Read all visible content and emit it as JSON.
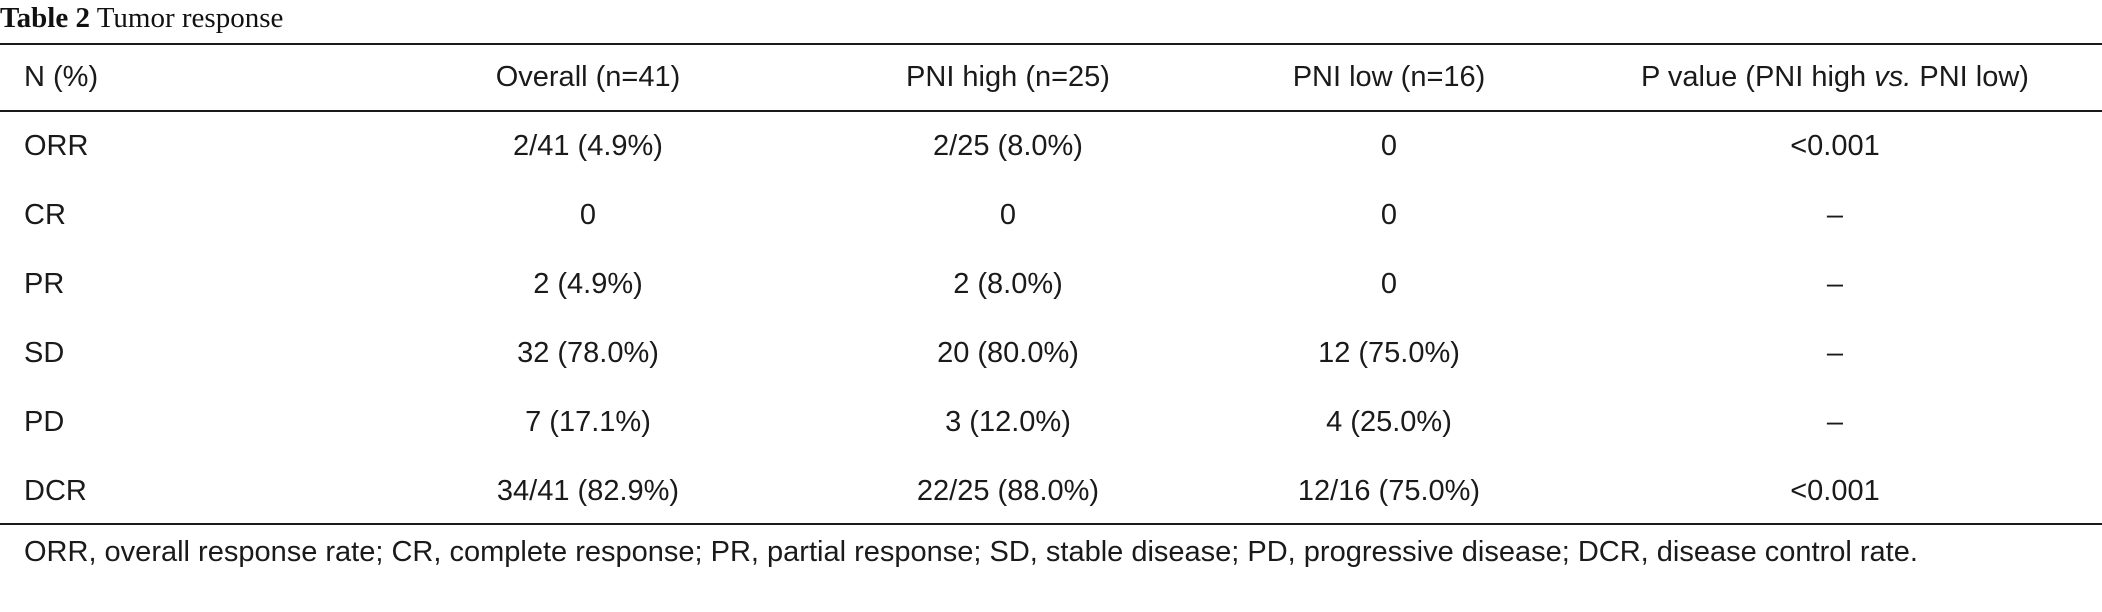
{
  "caption": {
    "label": "Table 2",
    "title": "Tumor response"
  },
  "table": {
    "headers": {
      "col0": "N (%)",
      "col1": "Overall (n=41)",
      "col2": "PNI high (n=25)",
      "col3": "PNI low (n=16)",
      "col4_prefix": "P value (PNI high ",
      "col4_italic": "vs.",
      "col4_suffix": " PNI low)"
    },
    "rows": [
      {
        "label": "ORR",
        "overall": "2/41 (4.9%)",
        "pni_high": "2/25 (8.0%)",
        "pni_low": "0",
        "p_value": "<0.001"
      },
      {
        "label": "CR",
        "overall": "0",
        "pni_high": "0",
        "pni_low": "0",
        "p_value": "–"
      },
      {
        "label": "PR",
        "overall": "2 (4.9%)",
        "pni_high": "2 (8.0%)",
        "pni_low": "0",
        "p_value": "–"
      },
      {
        "label": "SD",
        "overall": "32 (78.0%)",
        "pni_high": "20 (80.0%)",
        "pni_low": "12 (75.0%)",
        "p_value": "–"
      },
      {
        "label": "PD",
        "overall": "7 (17.1%)",
        "pni_high": "3 (12.0%)",
        "pni_low": "4 (25.0%)",
        "p_value": "–"
      },
      {
        "label": "DCR",
        "overall": "34/41 (82.9%)",
        "pni_high": "22/25 (88.0%)",
        "pni_low": "12/16 (75.0%)",
        "p_value": "<0.001"
      }
    ]
  },
  "footnote": "ORR, overall response rate; CR, complete response; PR, partial response; SD, stable disease; PD, progressive disease; DCR, disease control rate."
}
